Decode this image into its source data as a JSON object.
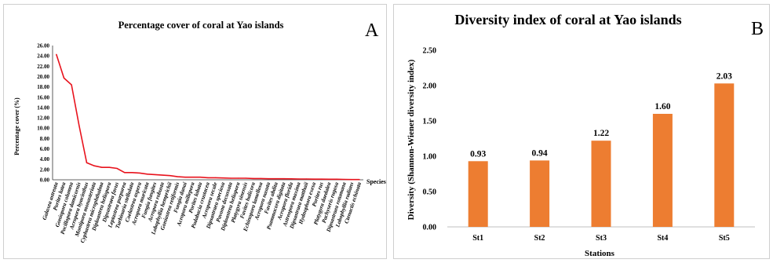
{
  "chart_data": [
    {
      "type": "line",
      "panel_label": "A",
      "title": "Percentage cover of coral at Yao islands",
      "xlabel": "Species",
      "ylabel": "Percentage cover (%)",
      "ylim": [
        0,
        26
      ],
      "yticks": [
        "0.00",
        "2.00",
        "4.00",
        "6.00",
        "8.00",
        "10.00",
        "12.00",
        "14.00",
        "16.00",
        "18.00",
        "20.00",
        "22.00",
        "24.00",
        "26.00"
      ],
      "grid": false,
      "legend": "none",
      "color": "#e8131d",
      "categories": [
        "Galaxea astreata",
        "Porites lutea",
        "Goniopora columna",
        "Pocillopora damicornis",
        "Acropora hyacinthus",
        "Montipora monasteriata",
        "Cyphastrea microphthalma",
        "Diploastrea heliopora",
        "Dipsastraea favus",
        "Leptastrea purpurea",
        "Turbinaria stellulata",
        "Coelastrea aspera",
        "Acropora muricata",
        "Fungia fungites",
        "Acropora robusta",
        "Lobophyllia hemprichii",
        "Goniastrea retiformis",
        "Fungia danai",
        "Acropora millepora",
        "Porites lobata",
        "Podabacia crustacea",
        "Acropora secale",
        "Dipsastraea speciosa",
        "Pavona decussata",
        "Diploastrea heliopora",
        "Platygyra sinensis",
        "Favites halicora",
        "Echinopora lamellosa",
        "Acropora nasuta",
        "Favites abdita",
        "Psammocora digitata",
        "Acropora florida",
        "Astreopora maxima",
        "Dipsastraea matthaii",
        "Hydnophora exesa",
        "Porites rus",
        "Platygyra daedalea",
        "Pachyseris rugosa",
        "Dipsastraea rotumana",
        "Lobophyllia radians",
        "Ctenactis echinata"
      ],
      "values": [
        24.3,
        19.7,
        18.4,
        10.5,
        3.3,
        2.7,
        2.4,
        2.4,
        2.2,
        1.4,
        1.4,
        1.3,
        1.1,
        1.0,
        0.9,
        0.8,
        0.6,
        0.5,
        0.5,
        0.5,
        0.4,
        0.4,
        0.35,
        0.3,
        0.3,
        0.3,
        0.25,
        0.25,
        0.2,
        0.2,
        0.2,
        0.18,
        0.15,
        0.15,
        0.12,
        0.12,
        0.1,
        0.1,
        0.08,
        0.05,
        0.05
      ]
    },
    {
      "type": "bar",
      "panel_label": "B",
      "title": "Diversity index of coral at Yao islands",
      "xlabel": "Stations",
      "ylabel": "Diversity (Shannon-Wiener diversity index)",
      "ylim": [
        0,
        2.5
      ],
      "yticks": [
        "0.00",
        "0.50",
        "1.00",
        "1.50",
        "2.00",
        "2.50"
      ],
      "grid": false,
      "legend": "none",
      "color": "#ed7d31",
      "categories": [
        "St1",
        "St2",
        "St3",
        "St4",
        "St5"
      ],
      "values": [
        0.93,
        0.94,
        1.22,
        1.6,
        2.03
      ],
      "data_labels": [
        "0.93",
        "0.94",
        "1.22",
        "1.60",
        "2.03"
      ]
    }
  ]
}
